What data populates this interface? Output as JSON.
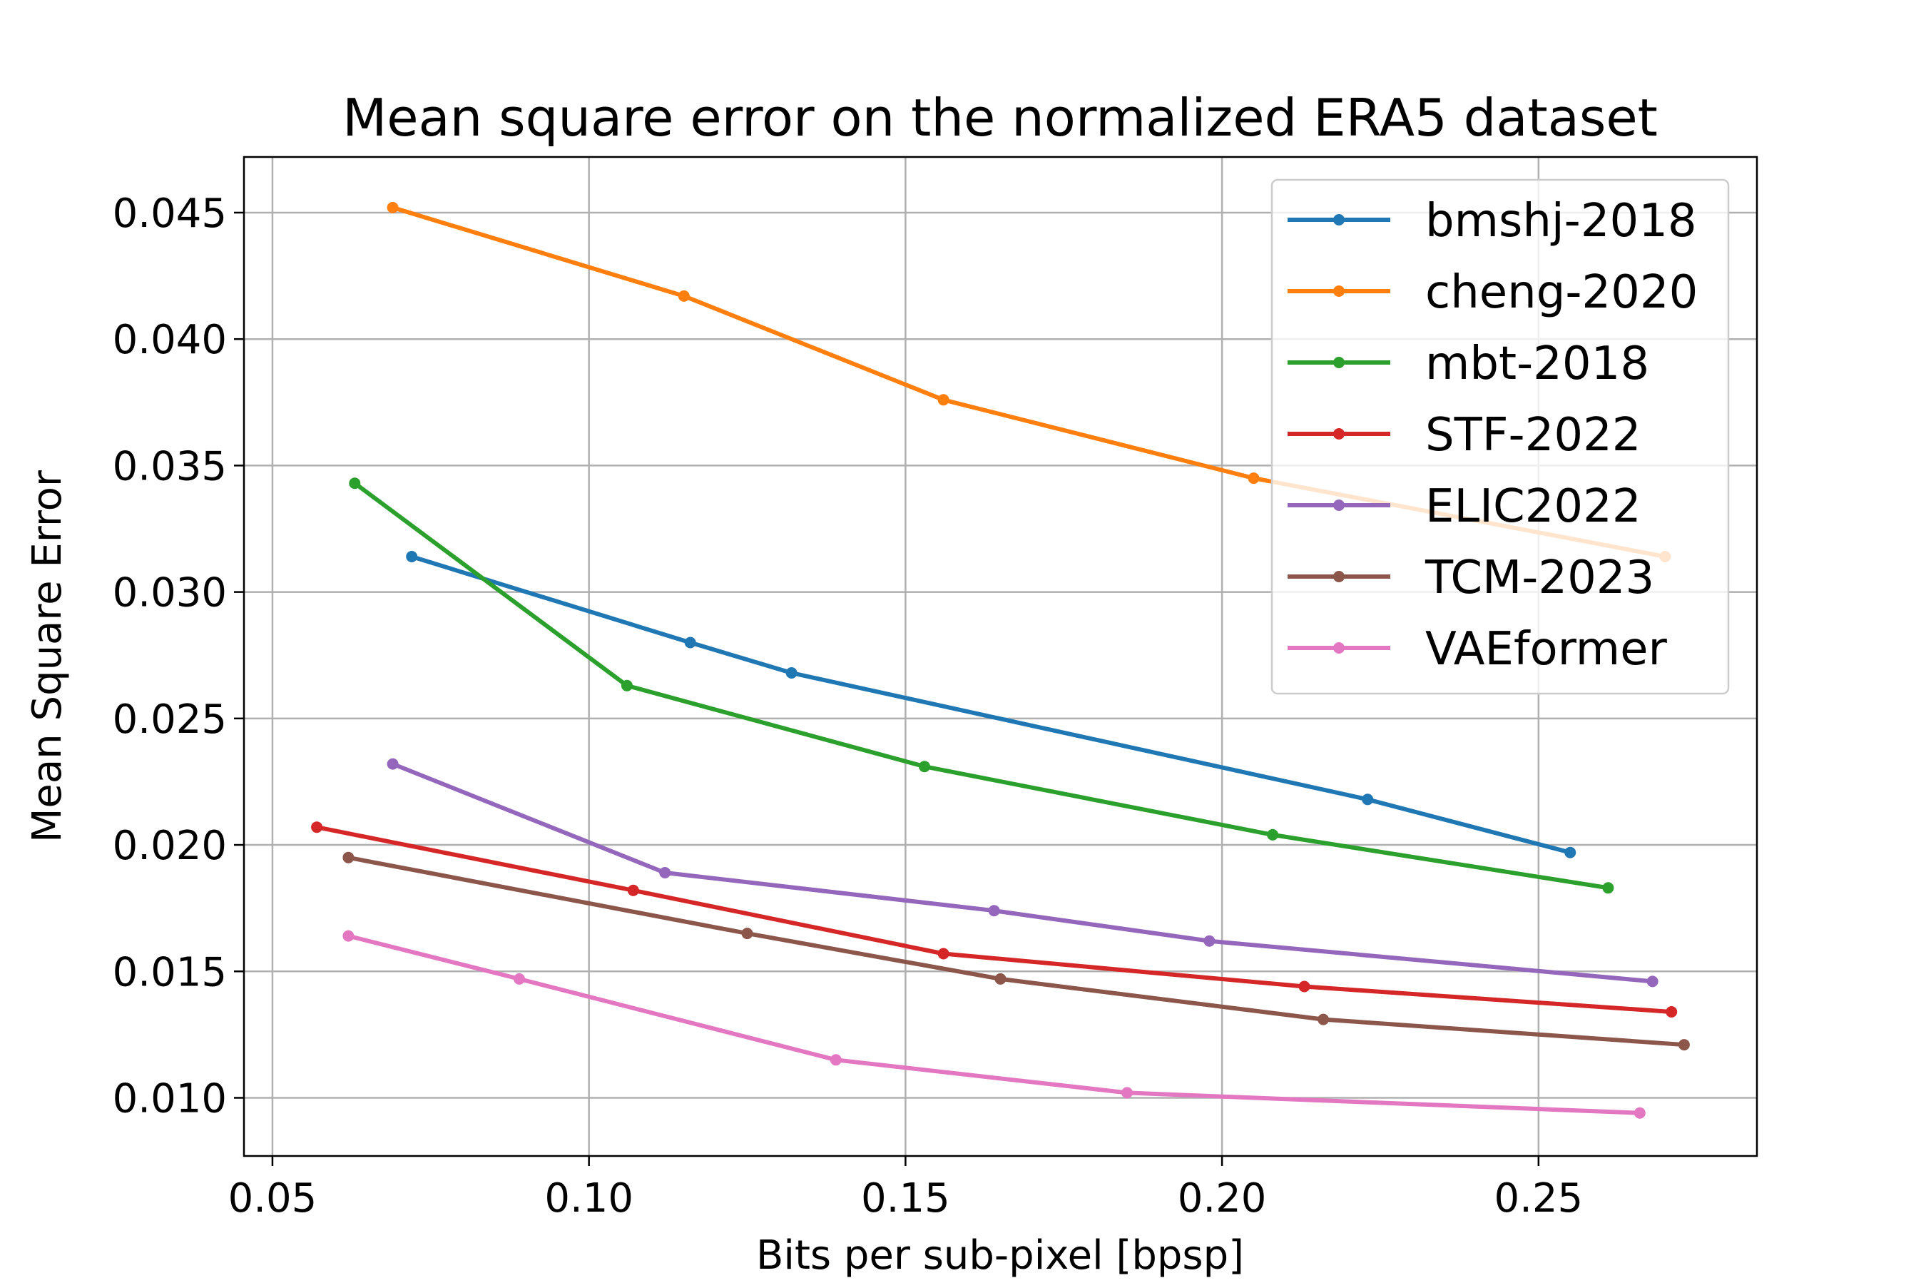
{
  "chart_data": {
    "type": "line",
    "title": "Mean square error on the normalized ERA5 dataset",
    "xlabel": "Bits per sub-pixel [bpsp]",
    "ylabel": "Mean Square Error",
    "xlim": [
      0.0455,
      0.2845
    ],
    "ylim": [
      0.0077,
      0.0472
    ],
    "xticks": [
      0.05,
      0.1,
      0.15,
      0.2,
      0.25
    ],
    "xtick_labels": [
      "0.05",
      "0.10",
      "0.15",
      "0.20",
      "0.25"
    ],
    "yticks": [
      0.01,
      0.015,
      0.02,
      0.025,
      0.03,
      0.035,
      0.04,
      0.045
    ],
    "ytick_labels": [
      "0.010",
      "0.015",
      "0.020",
      "0.025",
      "0.030",
      "0.035",
      "0.040",
      "0.045"
    ],
    "grid": true,
    "legend_position": "top-right",
    "series": [
      {
        "name": "bmshj-2018",
        "color": "#1f77b4",
        "x": [
          0.072,
          0.116,
          0.132,
          0.223,
          0.255
        ],
        "y": [
          0.0314,
          0.028,
          0.0268,
          0.0218,
          0.0197
        ]
      },
      {
        "name": "cheng-2020",
        "color": "#ff7f0e",
        "x": [
          0.069,
          0.115,
          0.156,
          0.205,
          0.27
        ],
        "y": [
          0.0452,
          0.0417,
          0.0376,
          0.0345,
          0.0314
        ]
      },
      {
        "name": "mbt-2018",
        "color": "#2ca02c",
        "x": [
          0.063,
          0.106,
          0.153,
          0.208,
          0.261
        ],
        "y": [
          0.0343,
          0.0263,
          0.0231,
          0.0204,
          0.0183
        ]
      },
      {
        "name": "STF-2022",
        "color": "#d62728",
        "x": [
          0.057,
          0.107,
          0.156,
          0.213,
          0.271
        ],
        "y": [
          0.0207,
          0.0182,
          0.0157,
          0.0144,
          0.0134
        ]
      },
      {
        "name": "ELIC2022",
        "color": "#9467bd",
        "x": [
          0.069,
          0.112,
          0.164,
          0.198,
          0.268
        ],
        "y": [
          0.0232,
          0.0189,
          0.0174,
          0.0162,
          0.0146
        ]
      },
      {
        "name": "TCM-2023",
        "color": "#8c564b",
        "x": [
          0.062,
          0.125,
          0.165,
          0.216,
          0.273
        ],
        "y": [
          0.0195,
          0.0165,
          0.0147,
          0.0131,
          0.0121
        ]
      },
      {
        "name": "VAEformer",
        "color": "#e377c2",
        "x": [
          0.062,
          0.089,
          0.139,
          0.185,
          0.266
        ],
        "y": [
          0.0164,
          0.0147,
          0.0115,
          0.0102,
          0.0094
        ]
      }
    ]
  }
}
